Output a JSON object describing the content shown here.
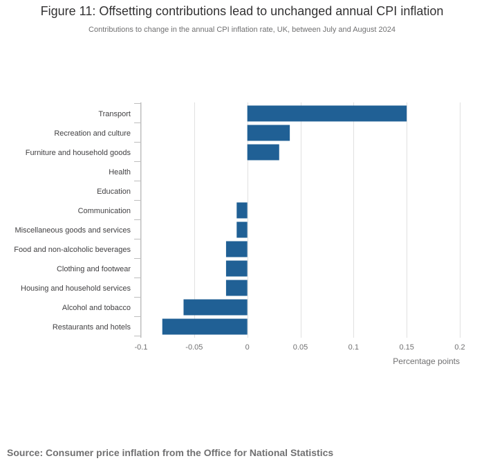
{
  "title": "Figure 11: Offsetting contributions lead to unchanged annual CPI inflation",
  "subtitle": "Contributions to change in the annual CPI inflation rate, UK, between July and August 2024",
  "source": "Source: Consumer price inflation from the Office for National Statistics",
  "colors": {
    "bar": "#206095",
    "grid": "#e0e0e0",
    "axis": "#bdbdbd",
    "text": "#414042"
  },
  "chart_data": {
    "type": "bar",
    "orientation": "horizontal",
    "title": "Figure 11: Offsetting contributions lead to unchanged annual CPI inflation",
    "xlabel": "Percentage points",
    "ylabel": "",
    "xlim": [
      -0.1,
      0.2
    ],
    "xticks": [
      -0.1,
      -0.05,
      0,
      0.05,
      0.1,
      0.15,
      0.2
    ],
    "xtick_labels": [
      "-0.1",
      "-0.05",
      "0",
      "0.05",
      "0.1",
      "0.15",
      "0.2"
    ],
    "grid": true,
    "categories": [
      "Transport",
      "Recreation and culture",
      "Furniture and household goods",
      "Health",
      "Education",
      "Communication",
      "Miscellaneous goods and services",
      "Food and non-alcoholic beverages",
      "Clothing and footwear",
      "Housing and household services",
      "Alcohol and tobacco",
      "Restaurants and hotels"
    ],
    "values": [
      0.15,
      0.04,
      0.03,
      0,
      0,
      -0.01,
      -0.01,
      -0.02,
      -0.02,
      -0.02,
      -0.06,
      -0.08
    ]
  }
}
